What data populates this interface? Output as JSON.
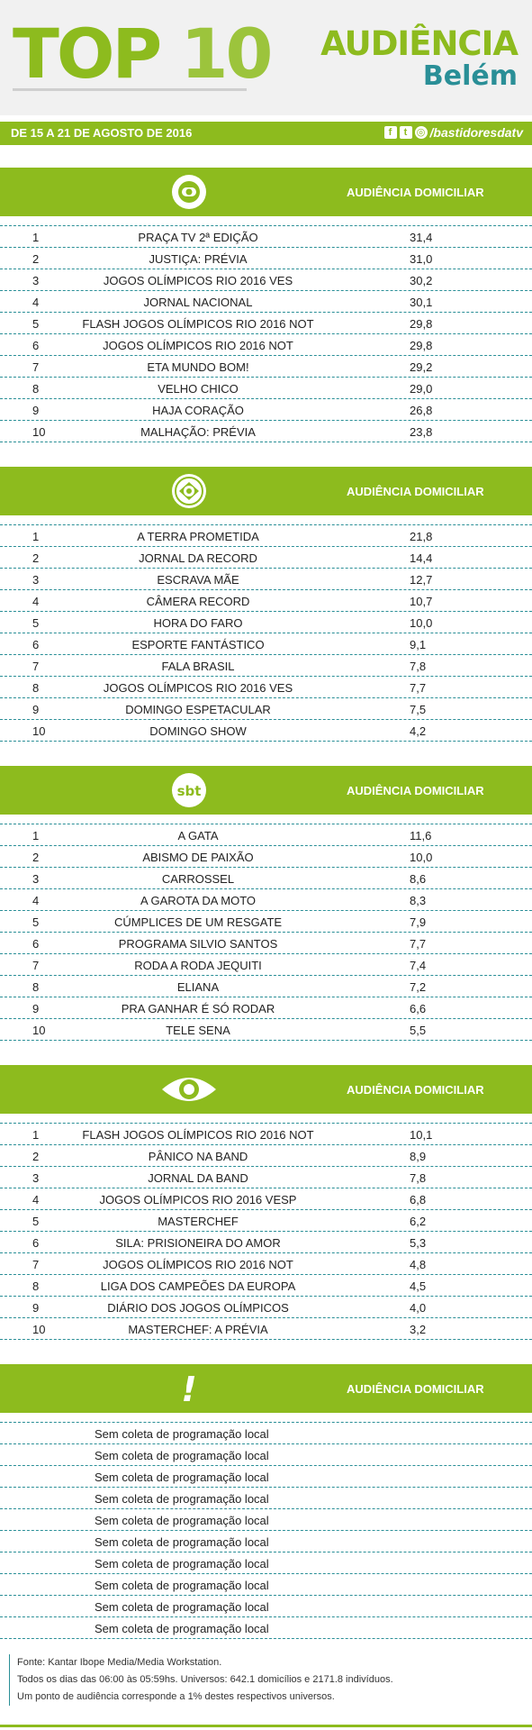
{
  "header": {
    "top_word": "TOP",
    "top_num": "10",
    "title": "AUDIÊNCIA",
    "city": "Belém"
  },
  "datebar": {
    "date": "DE 15 A 21 DE AGOSTO DE 2016",
    "handle": "/bastidoresdatv",
    "icons": [
      "facebook-icon",
      "twitter-icon",
      "instagram-icon"
    ]
  },
  "colors": {
    "accent": "#8dbb1e",
    "teal": "#2a8f97"
  },
  "sections": [
    {
      "channel": "globo",
      "header_label": "AUDIÊNCIA DOMICILIAR",
      "rows": [
        {
          "pos": "1",
          "program": "PRAÇA TV 2ª EDIÇÃO",
          "value": "31,4"
        },
        {
          "pos": "2",
          "program": "JUSTIÇA: PRÉVIA",
          "value": "31,0"
        },
        {
          "pos": "3",
          "program": "JOGOS OLÍMPICOS RIO 2016 VES",
          "value": "30,2"
        },
        {
          "pos": "4",
          "program": "JORNAL NACIONAL",
          "value": "30,1"
        },
        {
          "pos": "5",
          "program": "FLASH JOGOS OLÍMPICOS RIO 2016 NOT",
          "value": "29,8"
        },
        {
          "pos": "6",
          "program": "JOGOS OLÍMPICOS RIO 2016 NOT",
          "value": "29,8"
        },
        {
          "pos": "7",
          "program": "ETA MUNDO BOM!",
          "value": "29,2"
        },
        {
          "pos": "8",
          "program": "VELHO CHICO",
          "value": "29,0"
        },
        {
          "pos": "9",
          "program": "HAJA CORAÇÃO",
          "value": "26,8"
        },
        {
          "pos": "10",
          "program": "MALHAÇÃO: PRÉVIA",
          "value": "23,8"
        }
      ]
    },
    {
      "channel": "record",
      "header_label": "AUDIÊNCIA DOMICILIAR",
      "rows": [
        {
          "pos": "1",
          "program": "A TERRA PROMETIDA",
          "value": "21,8"
        },
        {
          "pos": "2",
          "program": "JORNAL DA RECORD",
          "value": "14,4"
        },
        {
          "pos": "3",
          "program": "ESCRAVA MÃE",
          "value": "12,7"
        },
        {
          "pos": "4",
          "program": "CÂMERA RECORD",
          "value": "10,7"
        },
        {
          "pos": "5",
          "program": "HORA DO FARO",
          "value": "10,0"
        },
        {
          "pos": "6",
          "program": "ESPORTE FANTÁSTICO",
          "value": "9,1"
        },
        {
          "pos": "7",
          "program": "FALA BRASIL",
          "value": "7,8"
        },
        {
          "pos": "8",
          "program": "JOGOS OLÍMPICOS RIO 2016 VES",
          "value": "7,7"
        },
        {
          "pos": "9",
          "program": "DOMINGO ESPETACULAR",
          "value": "7,5"
        },
        {
          "pos": "10",
          "program": "DOMINGO SHOW",
          "value": "4,2"
        }
      ]
    },
    {
      "channel": "sbt",
      "logo_text": "sbt",
      "header_label": "AUDIÊNCIA DOMICILIAR",
      "rows": [
        {
          "pos": "1",
          "program": "A GATA",
          "value": "11,6"
        },
        {
          "pos": "2",
          "program": "ABISMO DE PAIXÃO",
          "value": "10,0"
        },
        {
          "pos": "3",
          "program": "CARROSSEL",
          "value": "8,6"
        },
        {
          "pos": "4",
          "program": "A GAROTA DA MOTO",
          "value": "8,3"
        },
        {
          "pos": "5",
          "program": "CÚMPLICES DE UM RESGATE",
          "value": "7,9"
        },
        {
          "pos": "6",
          "program": "PROGRAMA SILVIO SANTOS",
          "value": "7,7"
        },
        {
          "pos": "7",
          "program": "RODA A RODA JEQUITI",
          "value": "7,4"
        },
        {
          "pos": "8",
          "program": "ELIANA",
          "value": "7,2"
        },
        {
          "pos": "9",
          "program": "PRA GANHAR É SÓ RODAR",
          "value": "6,6"
        },
        {
          "pos": "10",
          "program": "TELE SENA",
          "value": "5,5"
        }
      ]
    },
    {
      "channel": "band",
      "header_label": "AUDIÊNCIA DOMICILIAR",
      "rows": [
        {
          "pos": "1",
          "program": "FLASH JOGOS OLÍMPICOS RIO 2016 NOT",
          "value": "10,1"
        },
        {
          "pos": "2",
          "program": "PÂNICO NA BAND",
          "value": "8,9"
        },
        {
          "pos": "3",
          "program": "JORNAL DA BAND",
          "value": "7,8"
        },
        {
          "pos": "4",
          "program": "JOGOS OLÍMPICOS RIO 2016 VESP",
          "value": "6,8"
        },
        {
          "pos": "5",
          "program": "MASTERCHEF",
          "value": "6,2"
        },
        {
          "pos": "6",
          "program": "SILA: PRISIONEIRA DO AMOR",
          "value": "5,3"
        },
        {
          "pos": "7",
          "program": "JOGOS OLÍMPICOS RIO 2016 NOT",
          "value": "4,8"
        },
        {
          "pos": "8",
          "program": "LIGA DOS CAMPEÕES DA EUROPA",
          "value": "4,5"
        },
        {
          "pos": "9",
          "program": "DIÁRIO DOS JOGOS OLÍMPICOS",
          "value": "4,0"
        },
        {
          "pos": "10",
          "program": "MASTERCHEF: A PRÉVIA",
          "value": "3,2"
        }
      ]
    },
    {
      "channel": "redetv",
      "logo_text": "!",
      "header_label": "AUDIÊNCIA DOMICILIAR",
      "rows": [
        {
          "program": "Sem coleta de programação local"
        },
        {
          "program": "Sem coleta de programação local"
        },
        {
          "program": "Sem coleta de programação local"
        },
        {
          "program": "Sem coleta de programação local"
        },
        {
          "program": "Sem coleta de programação local"
        },
        {
          "program": "Sem coleta de programação local"
        },
        {
          "program": "Sem coleta de programação local"
        },
        {
          "program": "Sem coleta de programação local"
        },
        {
          "program": "Sem coleta de programação local"
        },
        {
          "program": "Sem coleta de programação local"
        }
      ]
    }
  ],
  "footer": {
    "line1": "Fonte: Kantar Ibope Media/Media Workstation.",
    "line2": "Todos os dias das 06:00 às 05:59hs. Universos: 642.1 domicílios e 2171.8 indivíduos.",
    "line3": "Um ponto de audiência corresponde a 1% destes respectivos universos."
  }
}
